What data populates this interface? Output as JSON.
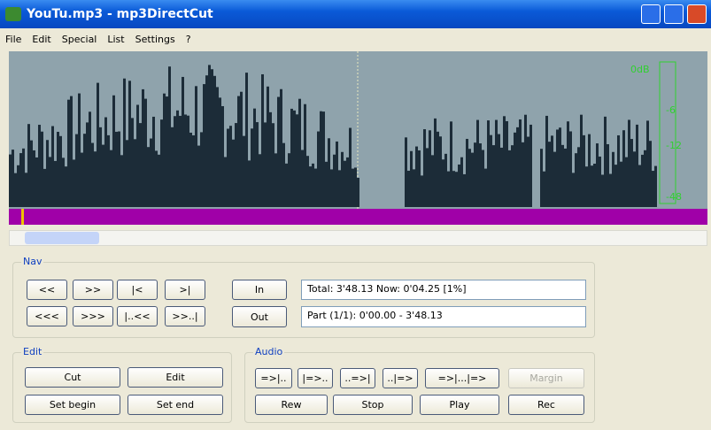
{
  "window": {
    "title": "YouTu.mp3 - mp3DirectCut"
  },
  "menu": [
    "File",
    "Edit",
    "Special",
    "List",
    "Settings",
    "?"
  ],
  "meter": [
    "0dB",
    "-6",
    "-12",
    "-48"
  ],
  "nav": {
    "label": "Nav",
    "buttons": [
      "<<",
      ">>",
      "|<",
      ">|",
      "<<<",
      ">>>",
      "|..<<",
      ">>..|"
    ],
    "in": "In",
    "out": "Out",
    "total": "Total: 3'48.13  Now: 0'04.25  [1%]",
    "part": "Part (1/1): 0'00.00 - 3'48.13"
  },
  "edit": {
    "label": "Edit",
    "buttons": [
      "Cut",
      "Edit",
      "Set begin",
      "Set end"
    ]
  },
  "audio": {
    "label": "Audio",
    "buttons": [
      "=>|..",
      "|=>..",
      "..=>|",
      "..|=>",
      "=>|...|=>",
      "Margin",
      "Rew",
      "Stop",
      "Play",
      "Rec"
    ]
  }
}
